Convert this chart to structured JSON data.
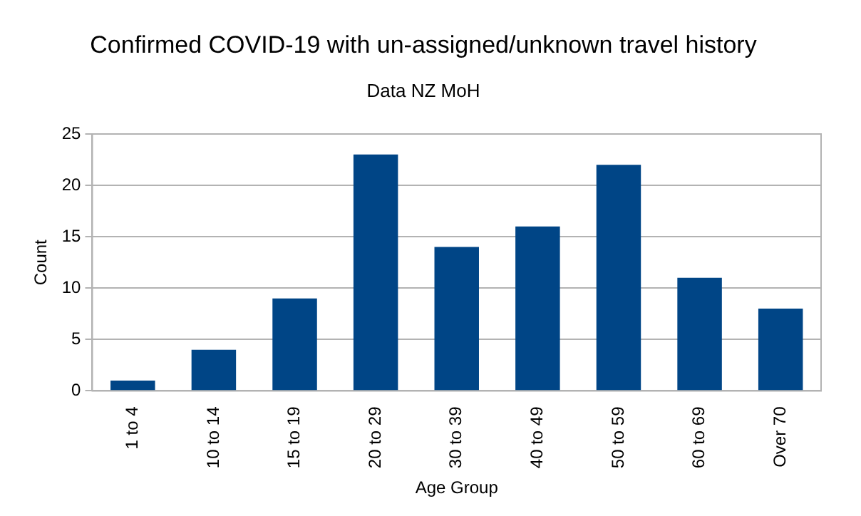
{
  "chart_data": {
    "type": "bar",
    "title": "Confirmed COVID-19 with un-assigned/unknown travel history",
    "subtitle": "Data NZ MoH",
    "xlabel": "Age Group",
    "ylabel": "Count",
    "categories": [
      "1 to 4",
      "10 to 14",
      "15 to 19",
      "20 to 29",
      "30 to 39",
      "40 to 49",
      "50 to 59",
      "60 to 69",
      "Over 70"
    ],
    "values": [
      1,
      4,
      9,
      23,
      14,
      16,
      22,
      11,
      8
    ],
    "color": "#004586",
    "ylim": [
      0,
      25
    ],
    "yticks": [
      0,
      5,
      10,
      15,
      20,
      25
    ],
    "grid": "y",
    "legend": false
  }
}
